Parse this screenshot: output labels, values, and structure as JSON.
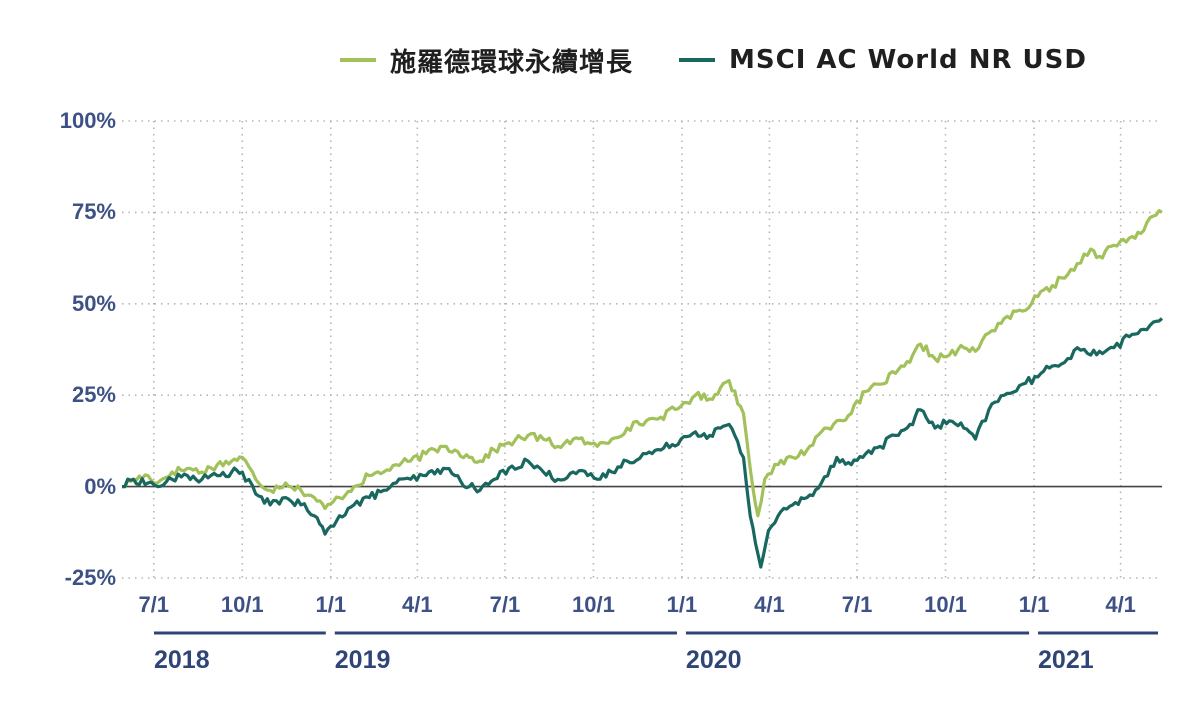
{
  "chart_data": {
    "type": "line",
    "title": "",
    "xlabel": "",
    "ylabel": "",
    "ylim": [
      -25,
      100
    ],
    "yticks": [
      "100%",
      "75%",
      "50%",
      "25%",
      "0%",
      "-25%"
    ],
    "ytick_values": [
      100,
      75,
      50,
      25,
      0,
      -25
    ],
    "xtick_labels": [
      "7/1",
      "10/1",
      "1/1",
      "4/1",
      "7/1",
      "10/1",
      "1/1",
      "4/1",
      "7/1",
      "10/1",
      "1/1",
      "4/1"
    ],
    "xtick_dates": [
      "2018-07-01",
      "2018-10-01",
      "2019-01-01",
      "2019-04-01",
      "2019-07-01",
      "2019-10-01",
      "2020-01-01",
      "2020-04-01",
      "2020-07-01",
      "2020-10-01",
      "2021-01-01",
      "2021-04-01"
    ],
    "years": [
      {
        "label": "2018",
        "start": "2018-05-29",
        "end": "2018-12-31"
      },
      {
        "label": "2019",
        "start": "2019-01-01",
        "end": "2019-12-31"
      },
      {
        "label": "2020",
        "start": "2020-01-01",
        "end": "2020-12-31"
      },
      {
        "label": "2021",
        "start": "2021-01-01",
        "end": "2021-05-14"
      }
    ],
    "grid": true,
    "legend_position": "top",
    "series": [
      {
        "name": "施羅德環球永續增長",
        "color": "#a3c15a",
        "points": [
          [
            "2018-05-29",
            0
          ],
          [
            "2018-06-10",
            2
          ],
          [
            "2018-06-25",
            3
          ],
          [
            "2018-07-05",
            1
          ],
          [
            "2018-07-20",
            4
          ],
          [
            "2018-08-05",
            5
          ],
          [
            "2018-08-20",
            4
          ],
          [
            "2018-09-05",
            6
          ],
          [
            "2018-09-20",
            7
          ],
          [
            "2018-10-01",
            8
          ],
          [
            "2018-10-15",
            2
          ],
          [
            "2018-10-30",
            -1
          ],
          [
            "2018-11-15",
            1
          ],
          [
            "2018-12-01",
            -1
          ],
          [
            "2018-12-15",
            -3
          ],
          [
            "2018-12-26",
            -6
          ],
          [
            "2019-01-10",
            -3
          ],
          [
            "2019-01-25",
            0
          ],
          [
            "2019-02-10",
            3
          ],
          [
            "2019-02-25",
            4
          ],
          [
            "2019-03-10",
            6
          ],
          [
            "2019-03-25",
            7
          ],
          [
            "2019-04-10",
            9
          ],
          [
            "2019-04-28",
            11
          ],
          [
            "2019-05-10",
            10
          ],
          [
            "2019-05-25",
            8
          ],
          [
            "2019-06-05",
            7
          ],
          [
            "2019-06-20",
            10
          ],
          [
            "2019-07-05",
            12
          ],
          [
            "2019-07-25",
            14
          ],
          [
            "2019-08-10",
            13
          ],
          [
            "2019-08-25",
            11
          ],
          [
            "2019-09-10",
            13
          ],
          [
            "2019-09-25",
            12
          ],
          [
            "2019-10-05",
            11
          ],
          [
            "2019-10-20",
            13
          ],
          [
            "2019-11-05",
            16
          ],
          [
            "2019-11-25",
            18
          ],
          [
            "2019-12-10",
            19
          ],
          [
            "2019-12-31",
            22
          ],
          [
            "2020-01-15",
            25
          ],
          [
            "2020-01-30",
            24
          ],
          [
            "2020-02-10",
            27
          ],
          [
            "2020-02-19",
            29
          ],
          [
            "2020-03-05",
            20
          ],
          [
            "2020-03-12",
            5
          ],
          [
            "2020-03-20",
            -8
          ],
          [
            "2020-03-27",
            2
          ],
          [
            "2020-04-10",
            6
          ],
          [
            "2020-04-25",
            8
          ],
          [
            "2020-05-10",
            10
          ],
          [
            "2020-05-25",
            15
          ],
          [
            "2020-06-10",
            18
          ],
          [
            "2020-06-25",
            20
          ],
          [
            "2020-07-10",
            26
          ],
          [
            "2020-07-25",
            28
          ],
          [
            "2020-08-10",
            31
          ],
          [
            "2020-08-25",
            34
          ],
          [
            "2020-09-05",
            39
          ],
          [
            "2020-09-20",
            35
          ],
          [
            "2020-10-05",
            36
          ],
          [
            "2020-10-20",
            38
          ],
          [
            "2020-11-01",
            37
          ],
          [
            "2020-11-15",
            42
          ],
          [
            "2020-12-01",
            46
          ],
          [
            "2020-12-20",
            48
          ],
          [
            "2021-01-05",
            52
          ],
          [
            "2021-01-20",
            55
          ],
          [
            "2021-02-05",
            58
          ],
          [
            "2021-02-15",
            61
          ],
          [
            "2021-03-01",
            65
          ],
          [
            "2021-03-10",
            63
          ],
          [
            "2021-03-25",
            66
          ],
          [
            "2021-04-10",
            68
          ],
          [
            "2021-04-25",
            70
          ],
          [
            "2021-05-05",
            74
          ],
          [
            "2021-05-14",
            75
          ]
        ]
      },
      {
        "name": "MSCI AC World NR USD",
        "color": "#19685f",
        "points": [
          [
            "2018-05-29",
            0
          ],
          [
            "2018-06-10",
            2
          ],
          [
            "2018-06-25",
            1
          ],
          [
            "2018-07-05",
            0
          ],
          [
            "2018-07-20",
            2
          ],
          [
            "2018-08-05",
            3
          ],
          [
            "2018-08-20",
            2
          ],
          [
            "2018-09-05",
            3
          ],
          [
            "2018-09-20",
            4
          ],
          [
            "2018-10-01",
            4
          ],
          [
            "2018-10-15",
            -2
          ],
          [
            "2018-10-30",
            -5
          ],
          [
            "2018-11-15",
            -3
          ],
          [
            "2018-12-01",
            -5
          ],
          [
            "2018-12-15",
            -8
          ],
          [
            "2018-12-26",
            -13
          ],
          [
            "2019-01-10",
            -8
          ],
          [
            "2019-01-25",
            -5
          ],
          [
            "2019-02-10",
            -3
          ],
          [
            "2019-02-25",
            -1
          ],
          [
            "2019-03-10",
            1
          ],
          [
            "2019-03-25",
            2
          ],
          [
            "2019-04-10",
            3
          ],
          [
            "2019-04-28",
            5
          ],
          [
            "2019-05-10",
            3
          ],
          [
            "2019-05-25",
            0
          ],
          [
            "2019-06-05",
            -1
          ],
          [
            "2019-06-20",
            2
          ],
          [
            "2019-07-05",
            5
          ],
          [
            "2019-07-25",
            7
          ],
          [
            "2019-08-10",
            4
          ],
          [
            "2019-08-25",
            2
          ],
          [
            "2019-09-10",
            4
          ],
          [
            "2019-09-25",
            3
          ],
          [
            "2019-10-05",
            2
          ],
          [
            "2019-10-20",
            4
          ],
          [
            "2019-11-05",
            7
          ],
          [
            "2019-11-25",
            9
          ],
          [
            "2019-12-10",
            10
          ],
          [
            "2019-12-31",
            13
          ],
          [
            "2020-01-15",
            15
          ],
          [
            "2020-01-30",
            14
          ],
          [
            "2020-02-10",
            16
          ],
          [
            "2020-02-19",
            17
          ],
          [
            "2020-03-05",
            8
          ],
          [
            "2020-03-12",
            -8
          ],
          [
            "2020-03-23",
            -22
          ],
          [
            "2020-03-31",
            -12
          ],
          [
            "2020-04-10",
            -8
          ],
          [
            "2020-04-25",
            -5
          ],
          [
            "2020-05-10",
            -3
          ],
          [
            "2020-05-25",
            1
          ],
          [
            "2020-06-10",
            8
          ],
          [
            "2020-06-25",
            6
          ],
          [
            "2020-07-10",
            9
          ],
          [
            "2020-07-25",
            11
          ],
          [
            "2020-08-10",
            14
          ],
          [
            "2020-08-25",
            17
          ],
          [
            "2020-09-05",
            21
          ],
          [
            "2020-09-20",
            16
          ],
          [
            "2020-10-05",
            18
          ],
          [
            "2020-10-20",
            16
          ],
          [
            "2020-11-01",
            13
          ],
          [
            "2020-11-15",
            21
          ],
          [
            "2020-12-01",
            25
          ],
          [
            "2020-12-20",
            28
          ],
          [
            "2021-01-05",
            30
          ],
          [
            "2021-01-20",
            33
          ],
          [
            "2021-02-05",
            35
          ],
          [
            "2021-02-15",
            38
          ],
          [
            "2021-03-01",
            36
          ],
          [
            "2021-03-10",
            37
          ],
          [
            "2021-03-25",
            38
          ],
          [
            "2021-04-10",
            41
          ],
          [
            "2021-04-25",
            43
          ],
          [
            "2021-05-05",
            45
          ],
          [
            "2021-05-14",
            46
          ]
        ]
      }
    ]
  }
}
